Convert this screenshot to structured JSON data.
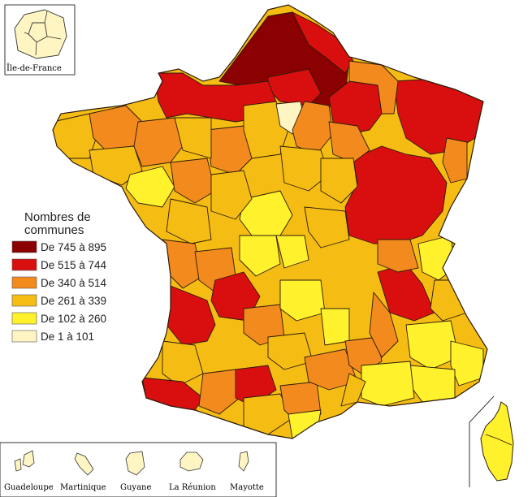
{
  "legend": {
    "title_line1": "Nombres de",
    "title_line2": "communes",
    "classes": [
      {
        "label": "De 745 à 895",
        "color": "#8b0000"
      },
      {
        "label": "De 515 à 744",
        "color": "#d90f0f"
      },
      {
        "label": "De 340 à 514",
        "color": "#f28a1e"
      },
      {
        "label": "De 261 à 339",
        "color": "#f5bd14"
      },
      {
        "label": "De 102 à 260",
        "color": "#fff12b"
      },
      {
        "label": "De 1 à 101",
        "color": "#fff5c2"
      }
    ]
  },
  "insets": {
    "ile_de_france": "Île-de-France",
    "overseas": [
      "Guadeloupe",
      "Martinique",
      "Guyane",
      "La Réunion",
      "Mayotte"
    ]
  },
  "colors": {
    "island_fill": "#fff5c2",
    "corsica_fill": "#fff12b"
  }
}
